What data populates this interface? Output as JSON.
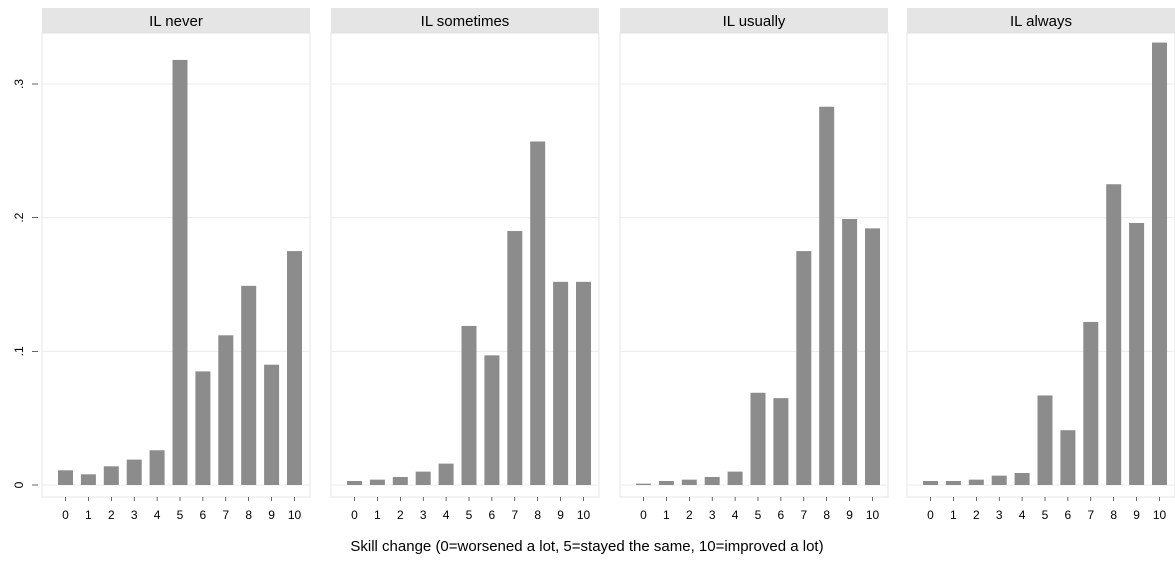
{
  "chart_data": {
    "type": "bar",
    "xlabel": "Skill change (0=worsened a lot, 5=stayed the same, 10=improved a lot)",
    "ylabel": "",
    "ylim": [
      0,
      0.33
    ],
    "yticks": [
      {
        "value": 0,
        "label": "0"
      },
      {
        "value": 0.1,
        "label": ".1"
      },
      {
        "value": 0.2,
        "label": ".2"
      },
      {
        "value": 0.3,
        "label": ".3"
      }
    ],
    "categories": [
      "0",
      "1",
      "2",
      "3",
      "4",
      "5",
      "6",
      "7",
      "8",
      "9",
      "10"
    ],
    "grid": true,
    "bar_color": "#8c8c8c",
    "panel_header_color": "#e5e5e5",
    "grid_color": "#ebebeb",
    "panels": [
      {
        "title": "IL never",
        "values": [
          0.011,
          0.008,
          0.014,
          0.019,
          0.026,
          0.318,
          0.085,
          0.112,
          0.149,
          0.09,
          0.175
        ]
      },
      {
        "title": "IL sometimes",
        "values": [
          0.003,
          0.004,
          0.006,
          0.01,
          0.016,
          0.119,
          0.097,
          0.19,
          0.257,
          0.152,
          0.152
        ]
      },
      {
        "title": "IL usually",
        "values": [
          0.001,
          0.003,
          0.004,
          0.006,
          0.01,
          0.069,
          0.065,
          0.175,
          0.283,
          0.199,
          0.192
        ]
      },
      {
        "title": "IL always",
        "values": [
          0.003,
          0.003,
          0.004,
          0.007,
          0.009,
          0.067,
          0.041,
          0.122,
          0.225,
          0.196,
          0.331
        ]
      }
    ]
  }
}
